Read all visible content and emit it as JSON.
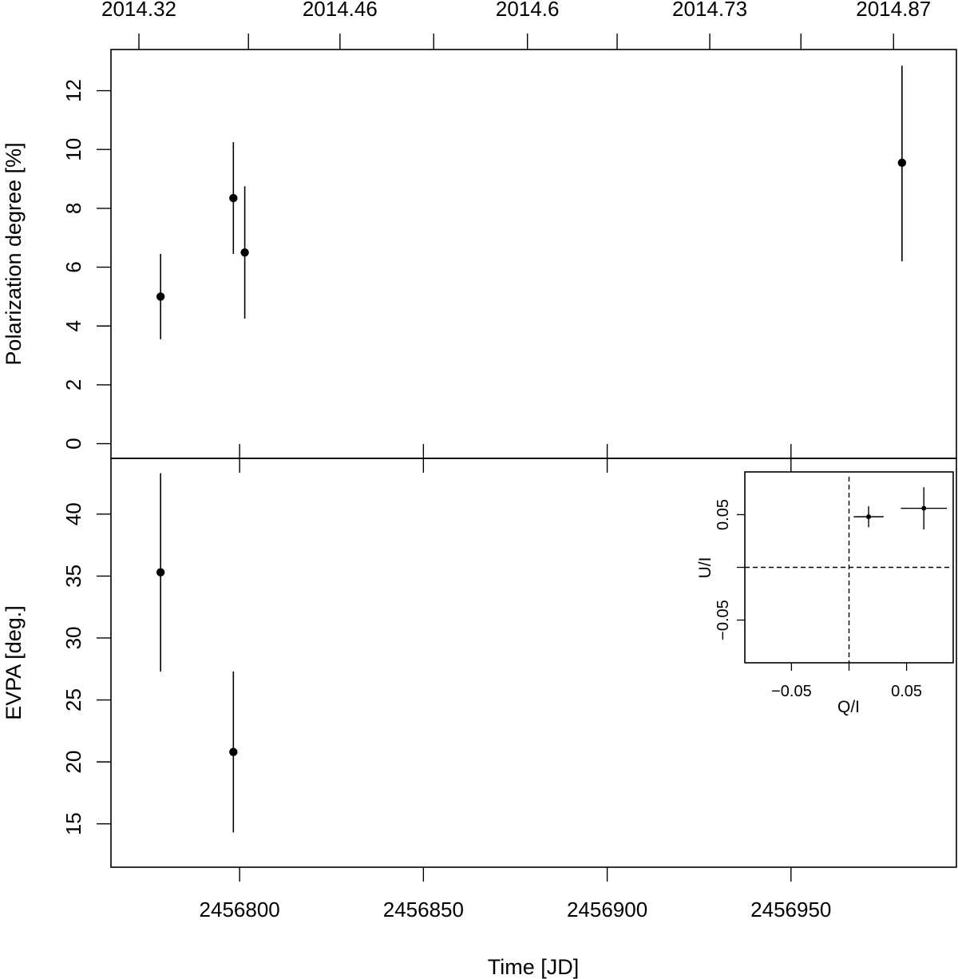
{
  "chart_data": {
    "type": "scatter",
    "x_axis": {
      "label": "Time [JD]",
      "range": [
        2456765,
        2456995
      ],
      "ticks": [
        2456800,
        2456850,
        2456900,
        2456950
      ],
      "tick_labels": [
        "2456800",
        "2456850",
        "2456900",
        "2456950"
      ],
      "top_ticks": [
        2456772.6,
        2456802.4,
        2456827.3,
        2456852.8,
        2456878.3,
        2456902.7,
        2456927.9,
        2456952.7,
        2456977.9
      ],
      "top_tick_labels": [
        "2014.32",
        "2014.46",
        "2014.6",
        "2014.73",
        "2014.87"
      ],
      "top_labelled_ticks": [
        2456772.6,
        2456827.3,
        2456878.3,
        2456927.9,
        2456977.9
      ]
    },
    "panels": [
      {
        "name": "polarization",
        "ylabel": "Polarization degree [%]",
        "ylim": [
          -0.5,
          13.4
        ],
        "yticks": [
          0,
          2,
          4,
          6,
          8,
          10,
          12
        ],
        "ytick_labels": [
          "0",
          "2",
          "4",
          "6",
          "8",
          "10",
          "12"
        ],
        "points": [
          {
            "x": 2456778.5,
            "y": 5.0,
            "ylo": 3.55,
            "yhi": 6.45
          },
          {
            "x": 2456798.3,
            "y": 8.35,
            "ylo": 6.45,
            "yhi": 10.25
          },
          {
            "x": 2456801.4,
            "y": 6.5,
            "ylo": 4.25,
            "yhi": 8.75
          },
          {
            "x": 2456980.2,
            "y": 9.55,
            "ylo": 6.2,
            "yhi": 12.85
          }
        ]
      },
      {
        "name": "evpa",
        "ylabel": "EVPA [deg.]",
        "ylim": [
          11.5,
          44.5
        ],
        "yticks": [
          15,
          20,
          25,
          30,
          35,
          40
        ],
        "ytick_labels": [
          "15",
          "20",
          "25",
          "30",
          "35",
          "40"
        ],
        "points": [
          {
            "x": 2456778.5,
            "y": 35.3,
            "ylo": 27.3,
            "yhi": 43.3
          },
          {
            "x": 2456798.3,
            "y": 20.8,
            "ylo": 14.3,
            "yhi": 27.3
          }
        ]
      }
    ],
    "inset": {
      "xlabel": "Q/I",
      "ylabel": "U/I",
      "xlim": [
        -0.0905,
        0.0905
      ],
      "ylim": [
        -0.0905,
        0.0905
      ],
      "xticks": [
        -0.05,
        0.05
      ],
      "xtick_labels": [
        "−0.05",
        "0.05"
      ],
      "yticks": [
        -0.05,
        0.05
      ],
      "ytick_labels": [
        "−0.05",
        "0.05"
      ],
      "points": [
        {
          "x": 0.017,
          "y": 0.048,
          "xerr": 0.013,
          "yerr": 0.01
        },
        {
          "x": 0.065,
          "y": 0.056,
          "xerr": 0.02,
          "yerr": 0.02
        }
      ]
    }
  }
}
